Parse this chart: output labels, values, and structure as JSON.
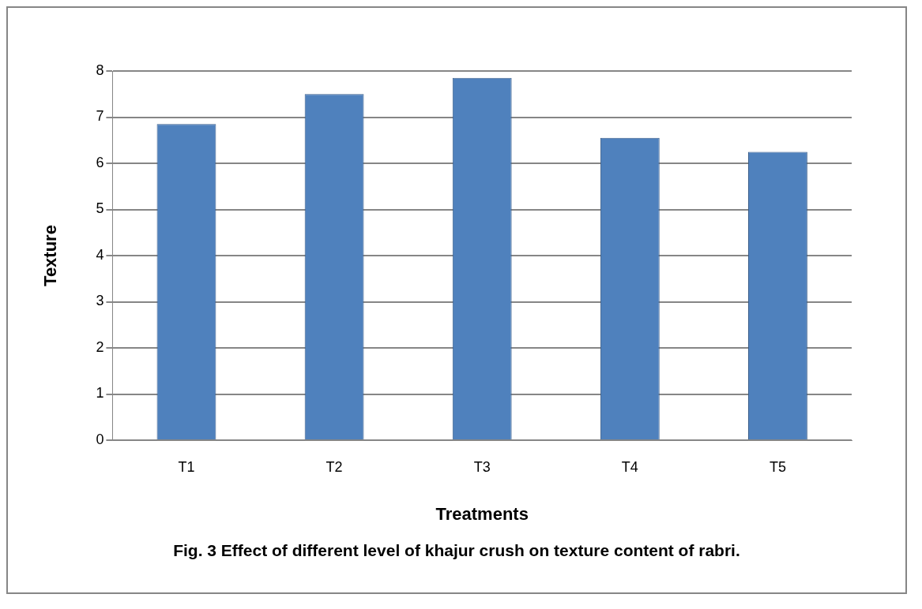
{
  "chart_data": {
    "type": "bar",
    "title": "Fig. 3 Effect of different level of khajur crush on texture content of rabri.",
    "xlabel": "Treatments",
    "ylabel": "Texture",
    "categories": [
      "T1",
      "T2",
      "T3",
      "T4",
      "T5"
    ],
    "values": [
      6.85,
      7.5,
      7.85,
      6.55,
      6.25
    ],
    "color": "#4f81bd",
    "ylim": [
      0,
      8
    ],
    "yticks": [
      0,
      1,
      2,
      3,
      4,
      5,
      6,
      7,
      8
    ],
    "grid": "y",
    "legend": false
  }
}
